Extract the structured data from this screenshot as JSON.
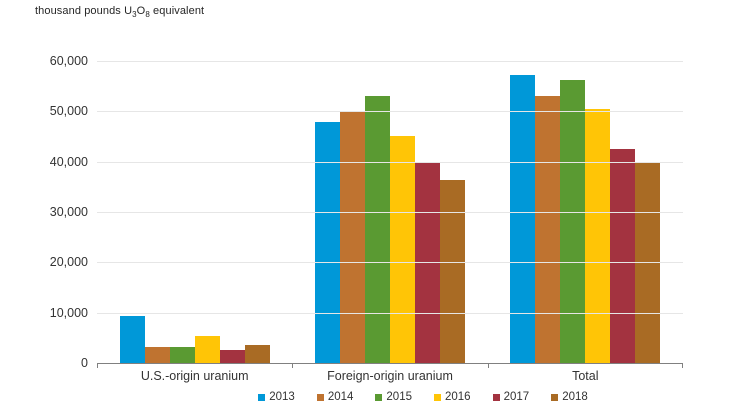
{
  "title": {
    "prefix": "thousand pounds U",
    "sub1": "3",
    "mid": "O",
    "sub2": "8",
    "suffix": " equivalent"
  },
  "chart_data": {
    "type": "bar",
    "title": "thousand pounds U3O8 equivalent",
    "categories": [
      "U.S.-origin uranium",
      "Foreign-origin uranium",
      "Total"
    ],
    "series": [
      {
        "name": "2013",
        "color": "#0098d8",
        "values": [
          9300,
          47900,
          57200
        ]
      },
      {
        "name": "2014",
        "color": "#bf7330",
        "values": [
          3100,
          49900,
          53000
        ]
      },
      {
        "name": "2015",
        "color": "#5a9a32",
        "values": [
          3200,
          53000,
          56200
        ]
      },
      {
        "name": "2016",
        "color": "#ffc506",
        "values": [
          5300,
          45100,
          50400
        ]
      },
      {
        "name": "2017",
        "color": "#a33340",
        "values": [
          2500,
          40000,
          42500
        ]
      },
      {
        "name": "2018",
        "color": "#a96b24",
        "values": [
          3600,
          36300,
          39900
        ]
      }
    ],
    "xlabel": "",
    "ylabel": "",
    "ylim": [
      0,
      60000
    ],
    "yticks": [
      {
        "value": 0,
        "label": "0"
      },
      {
        "value": 10000,
        "label": "10,000"
      },
      {
        "value": 20000,
        "label": "20,000"
      },
      {
        "value": 30000,
        "label": "30,000"
      },
      {
        "value": 40000,
        "label": "40,000"
      },
      {
        "value": 50000,
        "label": "50,000"
      },
      {
        "value": 60000,
        "label": "60,000"
      }
    ],
    "grid": true,
    "legend_position": "bottom",
    "axis_color": "#808080",
    "gridline_color": "#e6e6e6"
  }
}
